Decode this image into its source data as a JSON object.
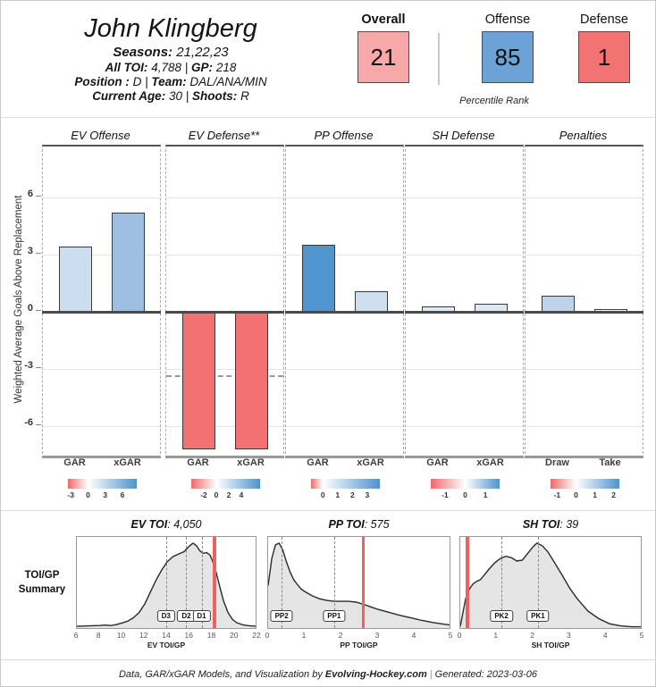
{
  "header": {
    "name": "John Klingberg",
    "seasons_label": "Seasons:",
    "seasons_value": "21,22,23",
    "toi_label": "All TOI:",
    "toi_value": "4,788",
    "gp_label": "GP:",
    "gp_value": "218",
    "position_label": "Position :",
    "position_value": "D",
    "team_label": "Team:",
    "team_value": "DAL/ANA/MIN",
    "age_label": "Current Age:",
    "age_value": "30",
    "shoots_label": "Shoots:",
    "shoots_value": "R",
    "pipe": "|"
  },
  "percentiles": {
    "caption": "Percentile Rank",
    "boxes": [
      {
        "label": "Overall",
        "value": "21",
        "color": "#f7a8a8"
      },
      {
        "label": "Offense",
        "value": "85",
        "color": "#6ba3d6"
      },
      {
        "label": "Defense",
        "value": "1",
        "color": "#f37272"
      }
    ]
  },
  "summary": {
    "label_line1": "TOI/GP",
    "label_line2": "Summary"
  },
  "colors": {
    "scale_neg": "#ed6a6a",
    "scale_pos": "#4f93cc",
    "player_line": "#f25f5f",
    "density_fill": "#e5e5e5",
    "density_stroke": "#2a2a2a"
  },
  "chart_data": [
    {
      "type": "bar",
      "title": "GAR / xGAR by component",
      "ylabel": "Weighted Average Goals Above Replacement",
      "ylim": [
        -7.5,
        8.7
      ],
      "yticks": [
        6,
        3,
        0,
        -3,
        -6
      ],
      "grid": true,
      "panels": [
        {
          "title": "EV Offense",
          "categories": [
            "GAR",
            "xGAR"
          ],
          "values": [
            3.4,
            5.2
          ],
          "colors": [
            "#cdddf0",
            "#9dc0e2"
          ],
          "scale": {
            "min": -3.5,
            "max": 8.5,
            "ticks": [
              -3,
              0,
              3,
              6
            ]
          }
        },
        {
          "title": "EV Defense**",
          "categories": [
            "GAR",
            "xGAR"
          ],
          "values": [
            -7.2,
            -7.2
          ],
          "colors": [
            "#f37172",
            "#f37172"
          ],
          "replacement_line": -3.35,
          "scale": {
            "min": -4,
            "max": 7,
            "ticks": [
              -2,
              0,
              2,
              4
            ]
          }
        },
        {
          "title": "PP Offense",
          "categories": [
            "GAR",
            "xGAR"
          ],
          "values": [
            3.5,
            1.1
          ],
          "colors": [
            "#4f96d1",
            "#cfdfee"
          ],
          "scale": {
            "min": -0.8,
            "max": 3.85,
            "ticks": [
              0,
              1,
              2,
              3
            ]
          }
        },
        {
          "title": "SH Defense",
          "categories": [
            "GAR",
            "xGAR"
          ],
          "values": [
            0.3,
            0.4
          ],
          "colors": [
            "#dfeaf5",
            "#dce8f4"
          ],
          "scale": {
            "min": -1.7,
            "max": 1.7,
            "ticks": [
              -1,
              0,
              1
            ]
          }
        },
        {
          "title": "Penalties",
          "categories": [
            "Draw",
            "Take"
          ],
          "values": [
            0.85,
            0.15
          ],
          "colors": [
            "#bed3eb",
            "#ffffff"
          ],
          "scale": {
            "min": -1.35,
            "max": 2.3,
            "ticks": [
              -1,
              0,
              1,
              2
            ]
          }
        }
      ]
    },
    {
      "type": "area",
      "title_label": "EV TOI",
      "title_value": "4,050",
      "xlabel": "EV TOI/GP",
      "xlim": [
        6,
        22
      ],
      "xticks": [
        6,
        8,
        10,
        12,
        14,
        16,
        18,
        20,
        22
      ],
      "marker_lines": [
        {
          "label": "D3",
          "x": 13.9
        },
        {
          "label": "D2",
          "x": 15.7
        },
        {
          "label": "D1",
          "x": 17.05
        }
      ],
      "player_line": 18.2,
      "density": [
        [
          6,
          0.02
        ],
        [
          7,
          0.025
        ],
        [
          8,
          0.03
        ],
        [
          8.5,
          0.035
        ],
        [
          9,
          0.03
        ],
        [
          9.5,
          0.04
        ],
        [
          10,
          0.06
        ],
        [
          10.5,
          0.08
        ],
        [
          11,
          0.12
        ],
        [
          11.5,
          0.18
        ],
        [
          12,
          0.28
        ],
        [
          12.5,
          0.42
        ],
        [
          13,
          0.56
        ],
        [
          13.5,
          0.68
        ],
        [
          14,
          0.78
        ],
        [
          14.5,
          0.84
        ],
        [
          15,
          0.87
        ],
        [
          15.5,
          0.9
        ],
        [
          16,
          0.97
        ],
        [
          16.3,
          1.0
        ],
        [
          16.6,
          0.97
        ],
        [
          16.9,
          0.91
        ],
        [
          17.2,
          0.88
        ],
        [
          17.5,
          0.89
        ],
        [
          17.8,
          0.86
        ],
        [
          18,
          0.8
        ],
        [
          18.3,
          0.68
        ],
        [
          18.6,
          0.52
        ],
        [
          19,
          0.32
        ],
        [
          19.4,
          0.18
        ],
        [
          19.8,
          0.1
        ],
        [
          20.2,
          0.06
        ],
        [
          20.8,
          0.035
        ],
        [
          21.4,
          0.025
        ],
        [
          22,
          0.02
        ]
      ]
    },
    {
      "type": "area",
      "title_label": "PP TOI",
      "title_value": "575",
      "xlabel": "PP TOI/GP",
      "xlim": [
        0,
        5
      ],
      "xticks": [
        0,
        1,
        2,
        3,
        4,
        5
      ],
      "marker_lines": [
        {
          "label": "PP2",
          "x": 0.37
        },
        {
          "label": "PP1",
          "x": 1.8
        }
      ],
      "player_line": 2.6,
      "density": [
        [
          0,
          0.5
        ],
        [
          0.1,
          0.82
        ],
        [
          0.2,
          0.98
        ],
        [
          0.3,
          1.0
        ],
        [
          0.4,
          0.92
        ],
        [
          0.5,
          0.78
        ],
        [
          0.6,
          0.66
        ],
        [
          0.7,
          0.57
        ],
        [
          0.8,
          0.51
        ],
        [
          0.9,
          0.46
        ],
        [
          1.0,
          0.43
        ],
        [
          1.2,
          0.38
        ],
        [
          1.4,
          0.345
        ],
        [
          1.6,
          0.325
        ],
        [
          1.8,
          0.315
        ],
        [
          2.0,
          0.315
        ],
        [
          2.2,
          0.315
        ],
        [
          2.4,
          0.305
        ],
        [
          2.6,
          0.28
        ],
        [
          2.8,
          0.25
        ],
        [
          3.0,
          0.22
        ],
        [
          3.3,
          0.185
        ],
        [
          3.6,
          0.15
        ],
        [
          3.9,
          0.12
        ],
        [
          4.2,
          0.09
        ],
        [
          4.5,
          0.065
        ],
        [
          4.8,
          0.045
        ],
        [
          5,
          0.035
        ]
      ]
    },
    {
      "type": "area",
      "title_label": "SH TOI",
      "title_value": "39",
      "xlabel": "SH TOI/GP",
      "xlim": [
        0,
        5
      ],
      "xticks": [
        0,
        1,
        2,
        3,
        4,
        5
      ],
      "marker_lines": [
        {
          "label": "PK2",
          "x": 1.13
        },
        {
          "label": "PK1",
          "x": 2.13
        }
      ],
      "player_line": 0.2,
      "density": [
        [
          0,
          0.02
        ],
        [
          0.08,
          0.2
        ],
        [
          0.15,
          0.35
        ],
        [
          0.25,
          0.46
        ],
        [
          0.35,
          0.52
        ],
        [
          0.45,
          0.55
        ],
        [
          0.55,
          0.57
        ],
        [
          0.65,
          0.62
        ],
        [
          0.8,
          0.7
        ],
        [
          0.95,
          0.77
        ],
        [
          1.1,
          0.82
        ],
        [
          1.25,
          0.845
        ],
        [
          1.4,
          0.83
        ],
        [
          1.55,
          0.79
        ],
        [
          1.7,
          0.8
        ],
        [
          1.85,
          0.88
        ],
        [
          2.0,
          0.96
        ],
        [
          2.1,
          1.0
        ],
        [
          2.25,
          0.97
        ],
        [
          2.4,
          0.9
        ],
        [
          2.6,
          0.76
        ],
        [
          2.8,
          0.62
        ],
        [
          3.0,
          0.47
        ],
        [
          3.2,
          0.35
        ],
        [
          3.5,
          0.2
        ],
        [
          3.8,
          0.11
        ],
        [
          4.1,
          0.05
        ],
        [
          4.4,
          0.025
        ],
        [
          4.7,
          0.015
        ],
        [
          5,
          0.015
        ]
      ]
    }
  ],
  "footer": {
    "text": "Data, GAR/xGAR Models, and Visualization by ",
    "site": "Evolving-Hockey.com",
    "pipe": "|",
    "generated": "Generated: 2023-03-06"
  }
}
